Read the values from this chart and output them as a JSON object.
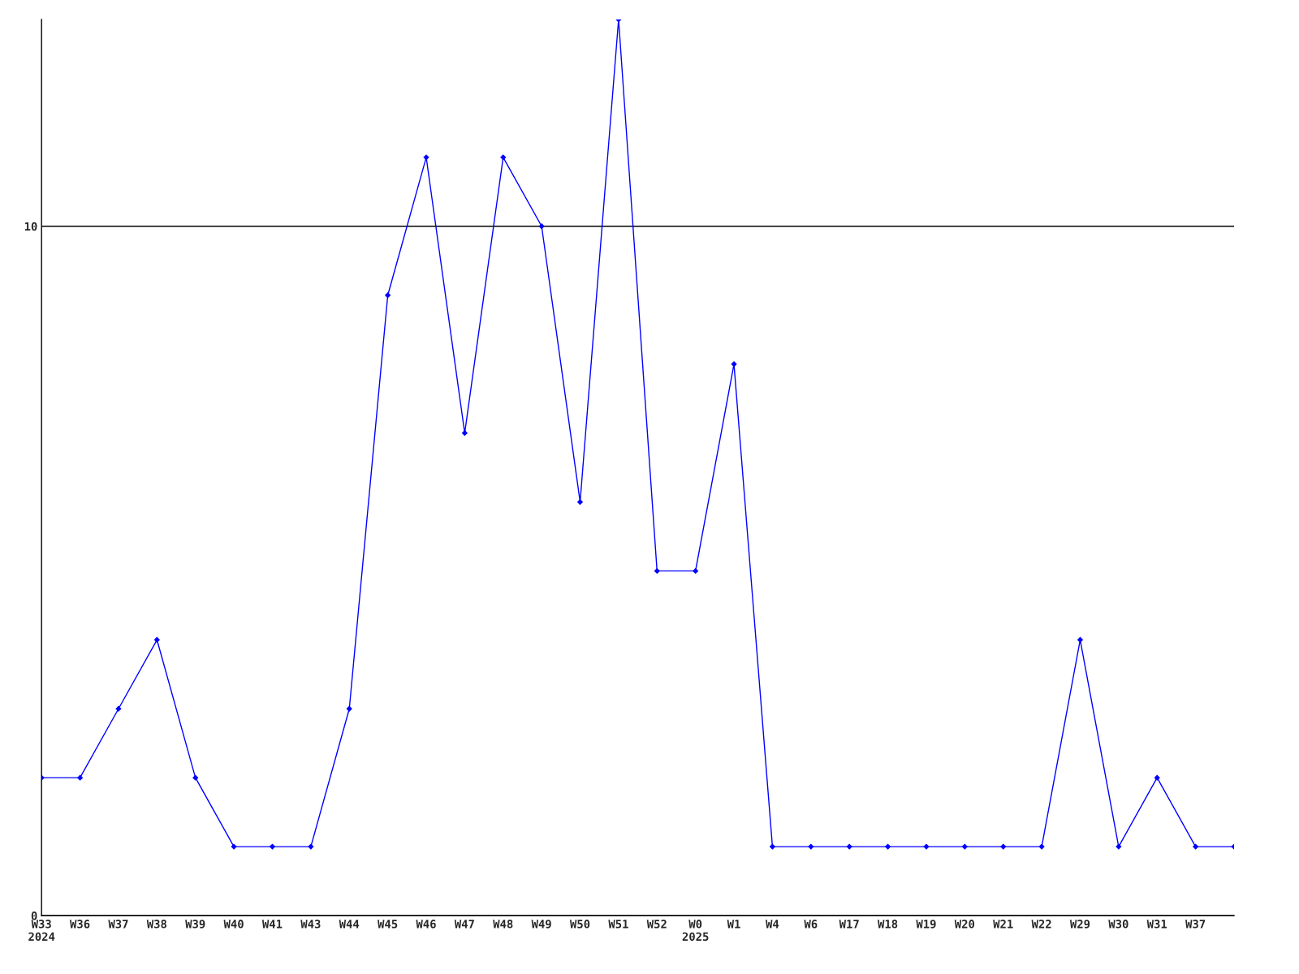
{
  "chart_data": {
    "type": "line",
    "categories": [
      "W33\n2024",
      "W36",
      "W37",
      "W38",
      "W39",
      "W40",
      "W41",
      "W43",
      "W44",
      "W45",
      "W46",
      "W47",
      "W48",
      "W49",
      "W50",
      "W51",
      "W52",
      "W0\n2025",
      "W1",
      "W4",
      "W6",
      "W17",
      "W18",
      "W19",
      "W20",
      "W21",
      "W22",
      "W29",
      "W30",
      "W31",
      "W37",
      null
    ],
    "series": [
      {
        "color": "#0000ff",
        "values": [
          2,
          2,
          3,
          4,
          2,
          1,
          1,
          1,
          3,
          9,
          11,
          7,
          11,
          10,
          6,
          13,
          5,
          5,
          8,
          1,
          1,
          1,
          1,
          1,
          1,
          1,
          1,
          4,
          1,
          2,
          1,
          1
        ]
      }
    ],
    "ylim": [
      0,
      13
    ],
    "yticks": [
      0,
      10
    ],
    "grid": "y",
    "marker": "diamond",
    "line_style": "solid"
  }
}
